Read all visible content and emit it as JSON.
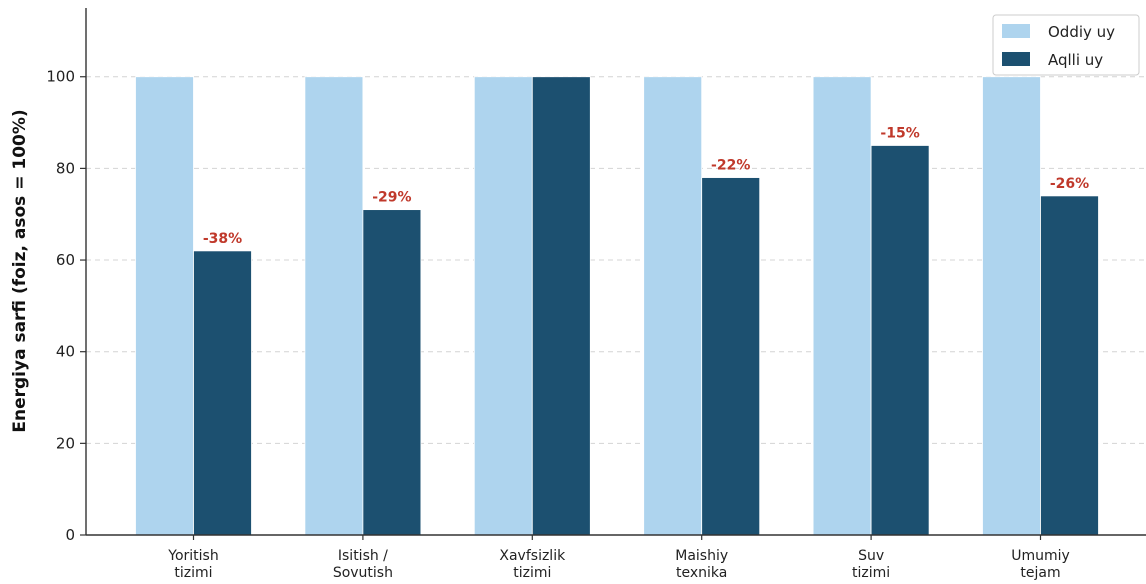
{
  "chart_data": {
    "type": "bar",
    "ylabel": "Energiya sarfi (foiz, asos = 100%)",
    "ylim": [
      0,
      115
    ],
    "yticks": [
      0,
      20,
      40,
      60,
      80,
      100
    ],
    "grid": "horizontal dashed",
    "legend_position": "top-right",
    "categories": [
      [
        "Yoritish",
        "tizimi"
      ],
      [
        "Isitish /",
        "Sovutish"
      ],
      [
        "Xavfsizlik",
        "tizimi"
      ],
      [
        "Maishiy",
        "texnika"
      ],
      [
        "Suv",
        "tizimi"
      ],
      [
        "Umumiy",
        "tejam"
      ]
    ],
    "series": [
      {
        "name": "Oddiy uy",
        "color": "#aed4ee",
        "values": [
          100,
          100,
          100,
          100,
          100,
          100
        ]
      },
      {
        "name": "Aqlli uy",
        "color": "#1c5070",
        "values": [
          62,
          71,
          100,
          78,
          85,
          74
        ]
      }
    ],
    "annotations": [
      "-38%",
      "-29%",
      "",
      "-22%",
      "-15%",
      "-26%"
    ],
    "annotation_color": "#c0392b"
  }
}
